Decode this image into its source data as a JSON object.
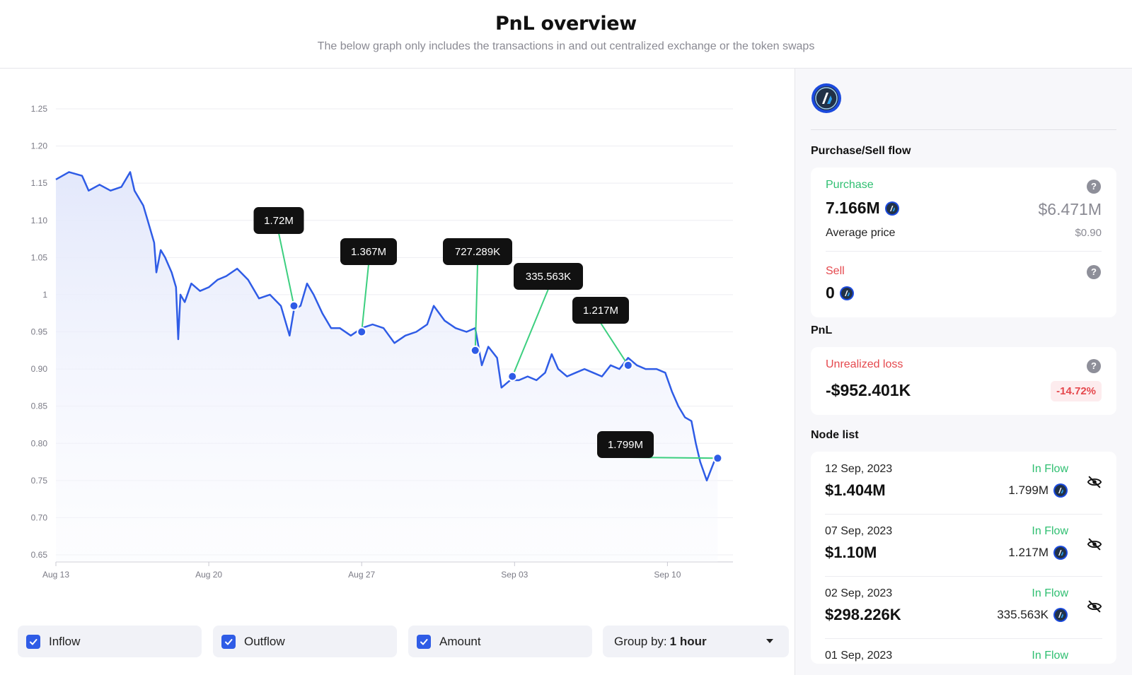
{
  "header": {
    "title": "PnL overview",
    "subtitle": "The below graph only includes the transactions in and out centralized exchange or the token swaps"
  },
  "chart_data": {
    "type": "line",
    "y_ticks": [
      "1.25",
      "1.20",
      "1.15",
      "1.10",
      "1.05",
      "1",
      "0.95",
      "0.90",
      "0.85",
      "0.80",
      "0.75",
      "0.70",
      "0.65"
    ],
    "ylim": [
      0.65,
      1.25
    ],
    "x_ticks": [
      {
        "label": "Aug 13",
        "day": 0
      },
      {
        "label": "Aug 20",
        "day": 7
      },
      {
        "label": "Aug 27",
        "day": 14
      },
      {
        "label": "Sep 03",
        "day": 21
      },
      {
        "label": "Sep 10",
        "day": 28
      }
    ],
    "xlim_days": [
      0,
      31
    ],
    "series": [
      {
        "values": [
          [
            0.0,
            1.155
          ],
          [
            0.6,
            1.165
          ],
          [
            1.2,
            1.16
          ],
          [
            1.5,
            1.14
          ],
          [
            2.0,
            1.148
          ],
          [
            2.5,
            1.14
          ],
          [
            3.0,
            1.145
          ],
          [
            3.4,
            1.165
          ],
          [
            3.6,
            1.14
          ],
          [
            4.0,
            1.12
          ],
          [
            4.2,
            1.1
          ],
          [
            4.5,
            1.07
          ],
          [
            4.6,
            1.03
          ],
          [
            4.8,
            1.06
          ],
          [
            5.0,
            1.05
          ],
          [
            5.3,
            1.03
          ],
          [
            5.5,
            1.01
          ],
          [
            5.6,
            0.94
          ],
          [
            5.7,
            1.0
          ],
          [
            5.9,
            0.99
          ],
          [
            6.2,
            1.015
          ],
          [
            6.6,
            1.005
          ],
          [
            7.0,
            1.01
          ],
          [
            7.4,
            1.02
          ],
          [
            7.8,
            1.025
          ],
          [
            8.3,
            1.035
          ],
          [
            8.8,
            1.02
          ],
          [
            9.3,
            0.995
          ],
          [
            9.8,
            1.0
          ],
          [
            10.3,
            0.985
          ],
          [
            10.7,
            0.945
          ],
          [
            10.9,
            0.98
          ],
          [
            11.2,
            0.985
          ],
          [
            11.5,
            1.015
          ],
          [
            11.8,
            1.0
          ],
          [
            12.2,
            0.975
          ],
          [
            12.6,
            0.955
          ],
          [
            13.0,
            0.955
          ],
          [
            13.5,
            0.945
          ],
          [
            14.0,
            0.955
          ],
          [
            14.5,
            0.96
          ],
          [
            15.0,
            0.955
          ],
          [
            15.5,
            0.935
          ],
          [
            16.0,
            0.945
          ],
          [
            16.5,
            0.95
          ],
          [
            17.0,
            0.96
          ],
          [
            17.3,
            0.985
          ],
          [
            17.8,
            0.965
          ],
          [
            18.3,
            0.955
          ],
          [
            18.8,
            0.95
          ],
          [
            19.2,
            0.955
          ],
          [
            19.5,
            0.905
          ],
          [
            19.8,
            0.93
          ],
          [
            20.2,
            0.915
          ],
          [
            20.4,
            0.875
          ],
          [
            20.8,
            0.885
          ],
          [
            21.2,
            0.885
          ],
          [
            21.6,
            0.89
          ],
          [
            22.0,
            0.885
          ],
          [
            22.4,
            0.895
          ],
          [
            22.7,
            0.92
          ],
          [
            23.0,
            0.9
          ],
          [
            23.4,
            0.89
          ],
          [
            23.8,
            0.895
          ],
          [
            24.2,
            0.9
          ],
          [
            24.6,
            0.895
          ],
          [
            25.0,
            0.89
          ],
          [
            25.4,
            0.905
          ],
          [
            25.8,
            0.9
          ],
          [
            26.2,
            0.915
          ],
          [
            26.6,
            0.905
          ],
          [
            27.0,
            0.9
          ],
          [
            27.5,
            0.9
          ],
          [
            27.9,
            0.895
          ],
          [
            28.2,
            0.87
          ],
          [
            28.5,
            0.85
          ],
          [
            28.8,
            0.835
          ],
          [
            29.1,
            0.83
          ],
          [
            29.3,
            0.8
          ],
          [
            29.5,
            0.775
          ],
          [
            29.8,
            0.75
          ],
          [
            30.0,
            0.765
          ],
          [
            30.2,
            0.78
          ],
          [
            30.3,
            0.78
          ]
        ]
      }
    ],
    "markers": [
      {
        "label": "1.72M",
        "day": 10.9,
        "value": 0.985
      },
      {
        "label": "1.367M",
        "day": 14.0,
        "value": 0.95
      },
      {
        "label": "727.289K",
        "day": 19.2,
        "value": 0.925
      },
      {
        "label": "335.563K",
        "day": 20.9,
        "value": 0.89
      },
      {
        "label": "1.217M",
        "day": 26.2,
        "value": 0.905
      },
      {
        "label": "1.799M",
        "day": 30.3,
        "value": 0.78
      }
    ]
  },
  "controls": {
    "inflow": "Inflow",
    "outflow": "Outflow",
    "amount": "Amount",
    "group_prefix": "Group by:",
    "group_value": "1 hour"
  },
  "side": {
    "flow_title": "Purchase/Sell flow",
    "purchase": {
      "label": "Purchase",
      "qty": "7.166M",
      "usd": "$6.471M",
      "avg_label": "Average price",
      "avg_value": "$0.90"
    },
    "sell": {
      "label": "Sell",
      "qty": "0"
    },
    "pnl_title": "PnL",
    "pnl": {
      "label": "Unrealized loss",
      "value": "-$952.401K",
      "pct": "-14.72%"
    },
    "node_title": "Node list",
    "nodes": [
      {
        "date": "12 Sep, 2023",
        "amount": "$1.404M",
        "flow": "In Flow",
        "qty": "1.799M"
      },
      {
        "date": "07 Sep, 2023",
        "amount": "$1.10M",
        "flow": "In Flow",
        "qty": "1.217M"
      },
      {
        "date": "02 Sep, 2023",
        "amount": "$298.226K",
        "flow": "In Flow",
        "qty": "335.563K"
      },
      {
        "date": "01 Sep, 2023",
        "amount": "",
        "flow": "In Flow",
        "qty": ""
      }
    ]
  },
  "colors": {
    "line": "#2f5ce6",
    "connector": "#3ccf7f",
    "green": "#2fbf71",
    "red": "#e5484d"
  }
}
